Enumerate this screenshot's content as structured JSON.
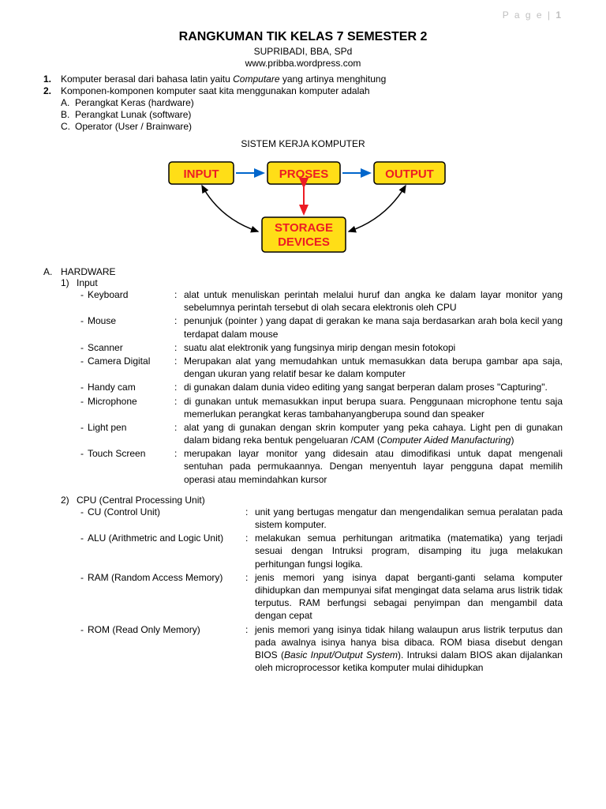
{
  "page_label": "P a g e | ",
  "page_number": "1",
  "title": "RANGKUMAN TIK KELAS 7 SEMESTER 2",
  "author": "SUPRIBADI, BBA, SPd",
  "url": "www.pribba.wordpress.com",
  "item1_num": "1.",
  "item1_pre": "Komputer berasal dari bahasa latin yaitu ",
  "item1_italic": "Computare",
  "item1_post": " yang artinya menghitung",
  "item2_num": "2.",
  "item2_text": "Komponen-komponen komputer saat kita menggunakan komputer adalah",
  "comp_a_l": "A.",
  "comp_a_t": "Perangkat Keras (hardware)",
  "comp_b_l": "B.",
  "comp_b_t": "Perangkat Lunak (software)",
  "comp_c_l": "C.",
  "comp_c_t": "Operator (User / Brainware)",
  "section_title": "SISTEM KERJA KOMPUTER",
  "diagram": {
    "box_fill": "#ffde17",
    "box_stroke": "#000000",
    "text_fill": "#000000",
    "text_stroke": "#ed1c24",
    "arrow_blue": "#0066cc",
    "arrow_red": "#ed1c24",
    "arrow_black": "#000000",
    "input": "INPUT",
    "proses": "PROSES",
    "output": "OUTPUT",
    "storage1": "STORAGE",
    "storage2": "DEVICES"
  },
  "hw_letter": "A.",
  "hw_label": "HARDWARE",
  "input_num": "1)",
  "input_label": "Input",
  "input_items": [
    {
      "term": "Keyboard",
      "desc": "alat untuk menuliskan perintah melalui huruf dan angka ke dalam layar monitor yang sebelumnya perintah tersebut di olah secara elektronis oleh CPU"
    },
    {
      "term": "Mouse",
      "desc": "penunjuk (pointer ) yang dapat di gerakan ke mana saja berdasarkan arah bola kecil yang terdapat dalam mouse"
    },
    {
      "term": "Scanner",
      "desc": "suatu alat elektronik yang fungsinya mirip dengan mesin fotokopi"
    },
    {
      "term": "Camera Digital",
      "desc": "Merupakan  alat yang memudahkan untuk memasukkan data berupa gambar apa saja, dengan ukuran yang relatif besar ke dalam komputer"
    },
    {
      "term": "Handy cam",
      "desc": "di gunakan dalam dunia video editing yang sangat berperan dalam proses \"Capturing\"."
    },
    {
      "term": "Microphone",
      "desc": "di gunakan untuk memasukkan input berupa suara. Penggunaan microphone tentu saja memerlukan perangkat keras tambahanyangberupa sound dan speaker"
    }
  ],
  "lightpen_term": "Light pen",
  "lightpen_pre": "alat yang di gunakan dengan skrin komputer yang peka cahaya. Light pen di gunakan dalam bidang reka bentuk pengeluaran /CAM (",
  "lightpen_italic": "Computer Aided Manufacturing",
  "lightpen_post": ")",
  "touch_term": "Touch Screen",
  "touch_desc": "merupakan layar monitor yang didesain atau dimodifikasi untuk dapat mengenali sentuhan pada permukaannya. Dengan menyentuh layar pengguna dapat memilih operasi atau memindahkan kursor",
  "cpu_num": "2)",
  "cpu_label": "CPU (Central Processing Unit)",
  "cpu_items": [
    {
      "term": "CU (Control Unit)",
      "desc": "unit yang bertugas mengatur dan mengendalikan semua peralatan pada sistem komputer."
    },
    {
      "term": "ALU (Arithmetric and Logic Unit)",
      "desc": "melakukan semua perhitungan aritmatika (matematika) yang terjadi sesuai dengan Intruksi program, disamping itu juga melakukan perhitungan fungsi logika."
    },
    {
      "term": "RAM (Random Access Memory)",
      "desc": "jenis memori yang isinya dapat berganti-ganti selama komputer dihidupkan dan mempunyai sifat mengingat data selama arus listrik tidak terputus. RAM berfungsi sebagai penyimpan dan mengambil data dengan cepat"
    }
  ],
  "rom_term": "ROM (Read Only Memory)",
  "rom_pre": "jenis memori yang isinya tidak hilang walaupun arus listrik terputus dan pada awalnya isinya hanya bisa dibaca. ROM biasa disebut dengan BIOS (",
  "rom_italic": "Basic Input/Output System",
  "rom_post": "). Intruksi dalam BIOS akan dijalankan oleh microprocessor ketika komputer mulai dihidupkan"
}
